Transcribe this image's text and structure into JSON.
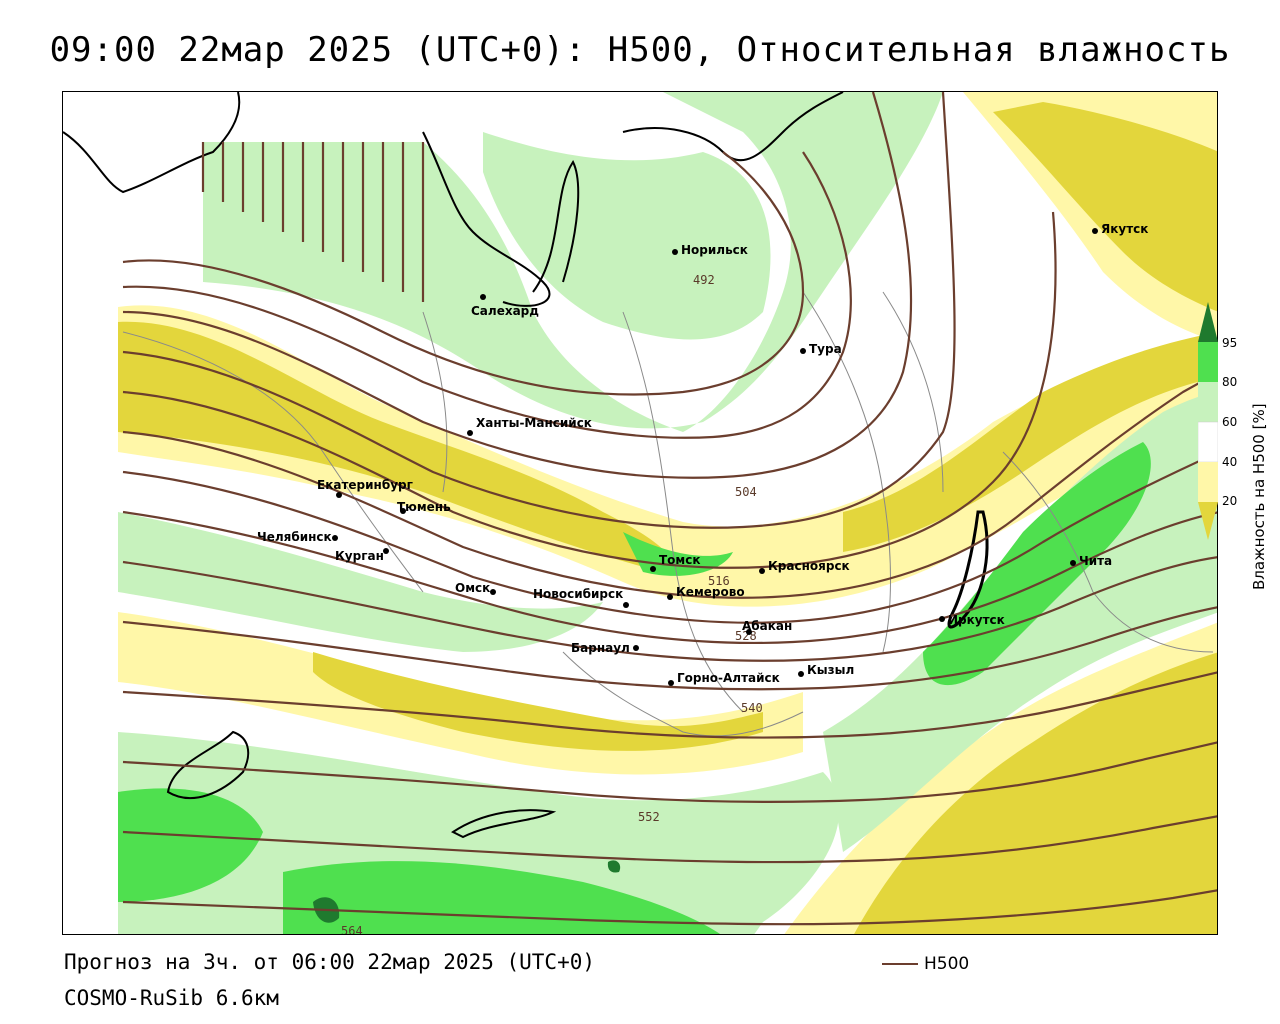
{
  "title": "09:00 22мар 2025 (UTC+0): H500, Относительная влажность",
  "footer": {
    "forecast": "Прогноз на 3ч. от 06:00 22мар 2025 (UTC+0)",
    "model": "COSMO-RuSib 6.6км"
  },
  "legend": {
    "line_label": "H500",
    "line_color": "#6b3e2e"
  },
  "colorbar": {
    "title": "Влажность на H500 [%]",
    "ticks": [
      "95",
      "80",
      "60",
      "40",
      "20"
    ],
    "colors": {
      "c95": "#1f7a2e",
      "c80": "#4fe04f",
      "c60": "#c7f2bd",
      "c40": "#ffffff",
      "c20": "#fff7a8",
      "c0": "#e3d63c"
    }
  },
  "cities": [
    {
      "name": "Якутск"
    },
    {
      "name": "Норильск"
    },
    {
      "name": "Салехард"
    },
    {
      "name": "Тура"
    },
    {
      "name": "Ханты-Мансийск"
    },
    {
      "name": "Екатеринбург"
    },
    {
      "name": "Тюмень"
    },
    {
      "name": "Челябинск"
    },
    {
      "name": "Курган"
    },
    {
      "name": "Омск"
    },
    {
      "name": "Новосибирск"
    },
    {
      "name": "Томск"
    },
    {
      "name": "Кемерово"
    },
    {
      "name": "Красноярск"
    },
    {
      "name": "Абакан"
    },
    {
      "name": "Барнаул"
    },
    {
      "name": "Горно-Алтайск"
    },
    {
      "name": "Кызыл"
    },
    {
      "name": "Иркутск"
    },
    {
      "name": "Чита"
    }
  ],
  "isolines": [
    "492",
    "504",
    "516",
    "528",
    "540",
    "552",
    "564"
  ]
}
